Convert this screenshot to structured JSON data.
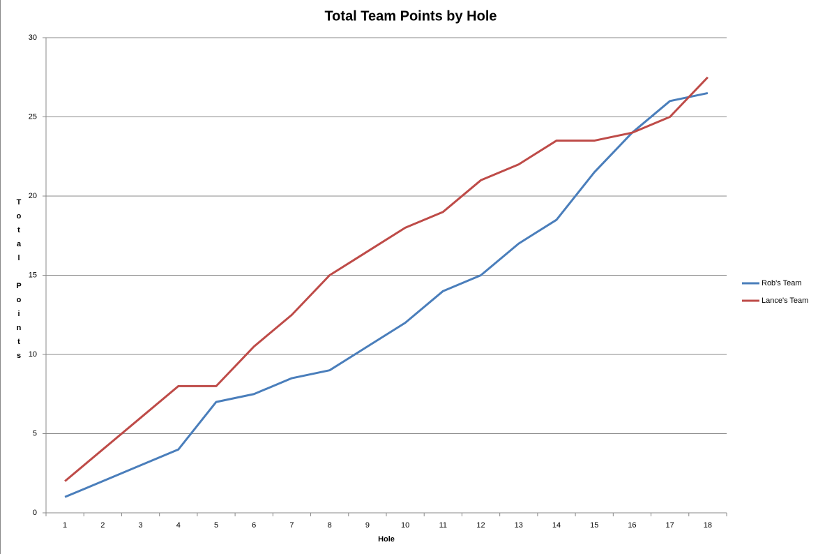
{
  "chart_data": {
    "type": "line",
    "title": "Total Team Points by Hole",
    "x_label": "Hole",
    "y_label": "Total Points",
    "categories": [
      "1",
      "2",
      "3",
      "4",
      "5",
      "6",
      "7",
      "8",
      "9",
      "10",
      "11",
      "12",
      "13",
      "14",
      "15",
      "16",
      "17",
      "18"
    ],
    "series": [
      {
        "name": "Rob's Team",
        "color": "#4a7ebb",
        "values": [
          1,
          2,
          3,
          4,
          7,
          7.5,
          8.5,
          9,
          10.5,
          12,
          14,
          15,
          17,
          18.5,
          21.5,
          24,
          26,
          26.5
        ]
      },
      {
        "name": "Lance's Team",
        "color": "#be4b48",
        "values": [
          2,
          4,
          6,
          8,
          8,
          10.5,
          12.5,
          15,
          16.5,
          18,
          19,
          21,
          22,
          23.5,
          23.5,
          24,
          25,
          27.5
        ]
      }
    ],
    "ylim": [
      0,
      30
    ],
    "yticks": [
      0,
      5,
      10,
      15,
      20,
      25,
      30
    ],
    "grid": true,
    "legend": "right"
  }
}
